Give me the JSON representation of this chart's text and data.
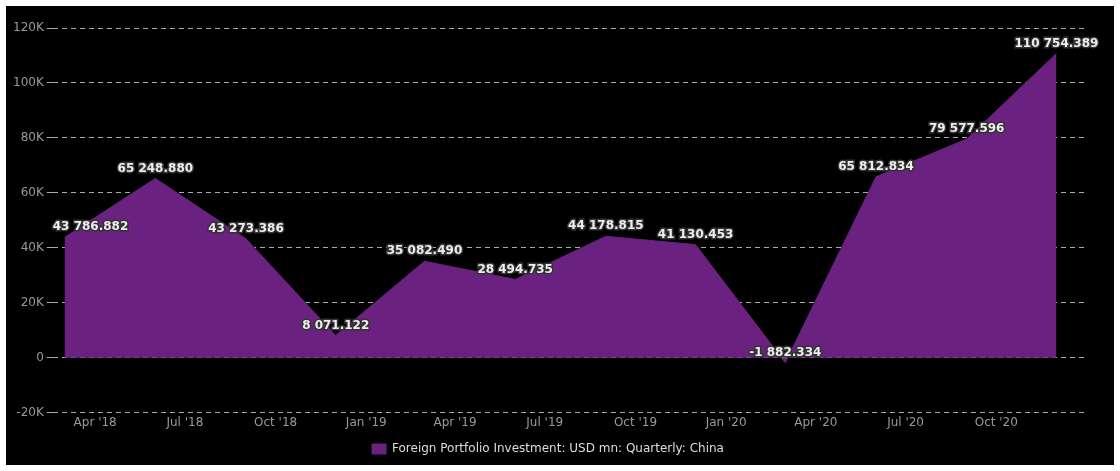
{
  "chart_data": {
    "type": "area",
    "x": [
      "2018-03",
      "2018-06",
      "2018-09",
      "2018-12",
      "2019-03",
      "2019-06",
      "2019-09",
      "2019-12",
      "2020-03",
      "2020-06",
      "2020-09",
      "2020-12"
    ],
    "series": [
      {
        "name": "Foreign Portfolio Investment: USD mn: Quarterly: China",
        "color": "#6b2180",
        "values": [
          43786.882,
          65248.88,
          43273.386,
          8071.122,
          35082.49,
          28494.735,
          44178.815,
          41130.453,
          -1882.334,
          65812.834,
          79577.596,
          110754.389
        ],
        "value_labels": [
          "43 786.882",
          "65 248.880",
          "43 273.386",
          "8 071.122",
          "35 082.490",
          "28 494.735",
          "44 178.815",
          "41 130.453",
          "-1 882.334",
          "65 812.834",
          "79 577.596",
          "110 754.389"
        ]
      }
    ],
    "xlim": [
      "2018-02-17",
      "2020-12-31"
    ],
    "xticks": [
      {
        "value": "2018-04",
        "label": "Apr '18"
      },
      {
        "value": "2018-07",
        "label": "Jul '18"
      },
      {
        "value": "2018-10",
        "label": "Oct '18"
      },
      {
        "value": "2019-01",
        "label": "Jan '19"
      },
      {
        "value": "2019-04",
        "label": "Apr '19"
      },
      {
        "value": "2019-07",
        "label": "Jul '19"
      },
      {
        "value": "2019-10",
        "label": "Oct '19"
      },
      {
        "value": "2020-01",
        "label": "Jan '20"
      },
      {
        "value": "2020-04",
        "label": "Apr '20"
      },
      {
        "value": "2020-07",
        "label": "Jul '20"
      },
      {
        "value": "2020-10",
        "label": "Oct '20"
      }
    ],
    "ylim": [
      -20000,
      120000
    ],
    "yticks": [
      {
        "value": -20000,
        "label": "-20K"
      },
      0,
      {
        "value": 20000,
        "label": "20K"
      },
      {
        "value": 40000,
        "label": "40K"
      },
      {
        "value": 60000,
        "label": "60K"
      },
      {
        "value": 80000,
        "label": "80K"
      },
      {
        "value": 100000,
        "label": "100K"
      },
      {
        "value": 120000,
        "label": "120K"
      }
    ],
    "grid": "y",
    "legend": "bottom",
    "marker": "none",
    "line_style": "solid"
  }
}
